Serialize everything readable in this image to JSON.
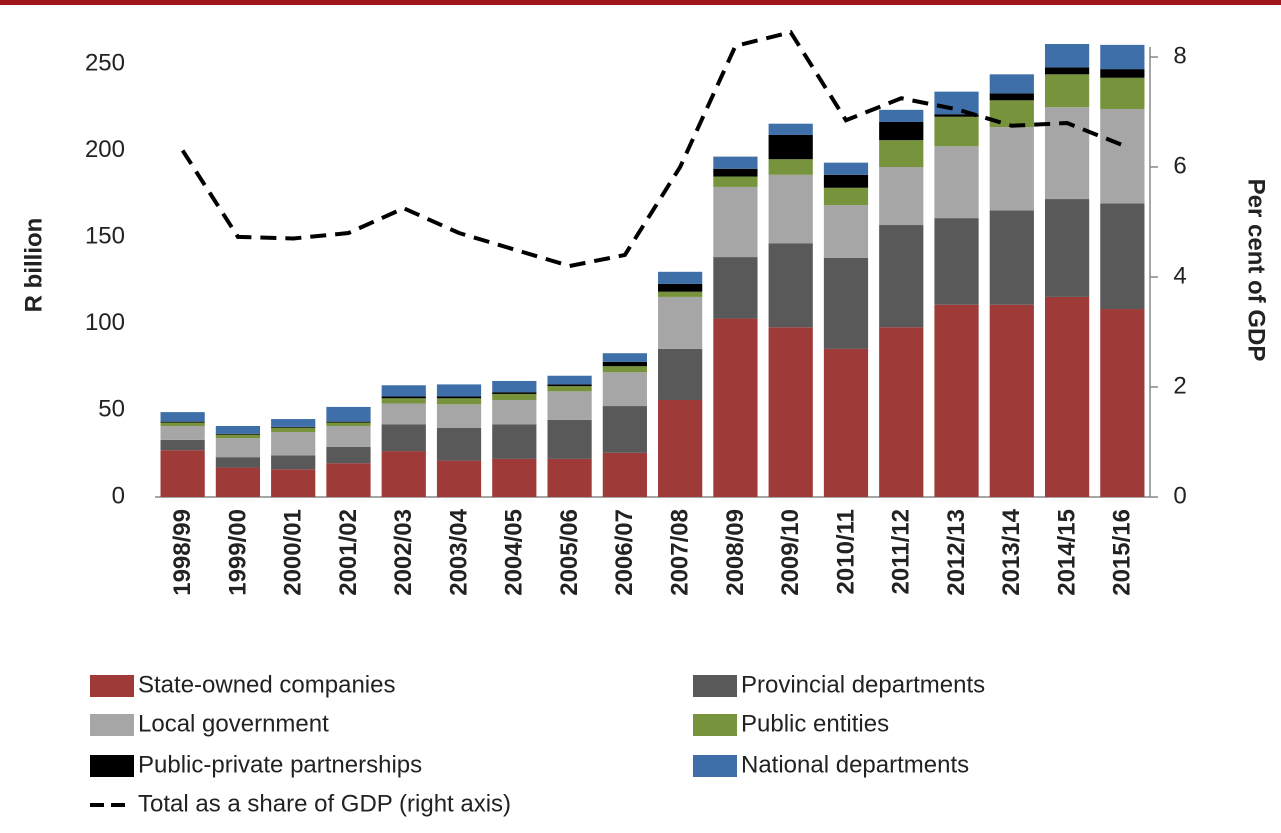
{
  "chart_data": {
    "type": "bar",
    "stacked": true,
    "ylabel": "R billion",
    "y2label": "Per cent of GDP",
    "categories": [
      "1998/99",
      "1999/00",
      "2000/01",
      "2001/02",
      "2002/03",
      "2003/04",
      "2004/05",
      "2005/06",
      "2006/07",
      "2007/08",
      "2008/09",
      "2009/10",
      "2010/11",
      "2011/12",
      "2012/13",
      "2013/14",
      "2014/15",
      "2015/16"
    ],
    "series": [
      {
        "name": "State-owned companies",
        "color": "#9e3a38",
        "values": [
          27,
          17,
          16,
          19.5,
          26.5,
          21,
          22,
          22,
          25.5,
          56,
          103,
          98,
          85.5,
          98,
          111,
          111,
          115.5,
          108.5
        ]
      },
      {
        "name": "Provincial departments",
        "color": "#595959",
        "values": [
          6,
          6,
          8,
          9.5,
          15.5,
          19,
          20,
          22.5,
          27,
          29.5,
          35.5,
          48.5,
          52.5,
          59,
          50,
          54.5,
          56.5,
          61
        ]
      },
      {
        "name": "Local government",
        "color": "#a6a6a6",
        "values": [
          8,
          11,
          13.5,
          12,
          12,
          13.5,
          14,
          16.5,
          19.5,
          30,
          40.5,
          39.5,
          30.5,
          33.5,
          41.5,
          48,
          53,
          54.5
        ]
      },
      {
        "name": "Public entities",
        "color": "#77933c",
        "values": [
          2,
          2,
          2.5,
          2,
          3,
          3.5,
          3.5,
          3,
          3.5,
          3,
          6,
          9,
          10,
          15.5,
          17,
          15.5,
          19,
          18
        ]
      },
      {
        "name": "Public-private partnerships",
        "color": "#000000",
        "values": [
          0.5,
          0.5,
          0.5,
          0.5,
          1,
          1,
          1,
          1,
          2.5,
          4.5,
          4.5,
          14,
          7.5,
          10.5,
          1.5,
          4,
          4,
          5
        ]
      },
      {
        "name": "National departments",
        "color": "#3f6fa8",
        "values": [
          5.5,
          4.5,
          4.5,
          8.5,
          6.5,
          7,
          6.5,
          5,
          5,
          7,
          7,
          6.5,
          7,
          7,
          13,
          11,
          13.5,
          14
        ]
      },
      {
        "name": "Total as a share of GDP (right axis)",
        "type": "line",
        "axis": "y2",
        "color": "#000000",
        "dashed": true,
        "values": [
          6.3,
          4.73,
          4.7,
          4.8,
          5.25,
          4.8,
          4.5,
          4.2,
          4.4,
          6.0,
          8.2,
          8.45,
          6.85,
          7.25,
          7.05,
          6.75,
          6.8,
          6.4
        ]
      }
    ],
    "ylim": [
      0,
      254
    ],
    "yticks": [
      0,
      50,
      100,
      150,
      200,
      250
    ],
    "y2lim": [
      0,
      8
    ],
    "y2ticks": [
      0,
      2,
      4,
      6,
      8
    ],
    "grid": false
  }
}
